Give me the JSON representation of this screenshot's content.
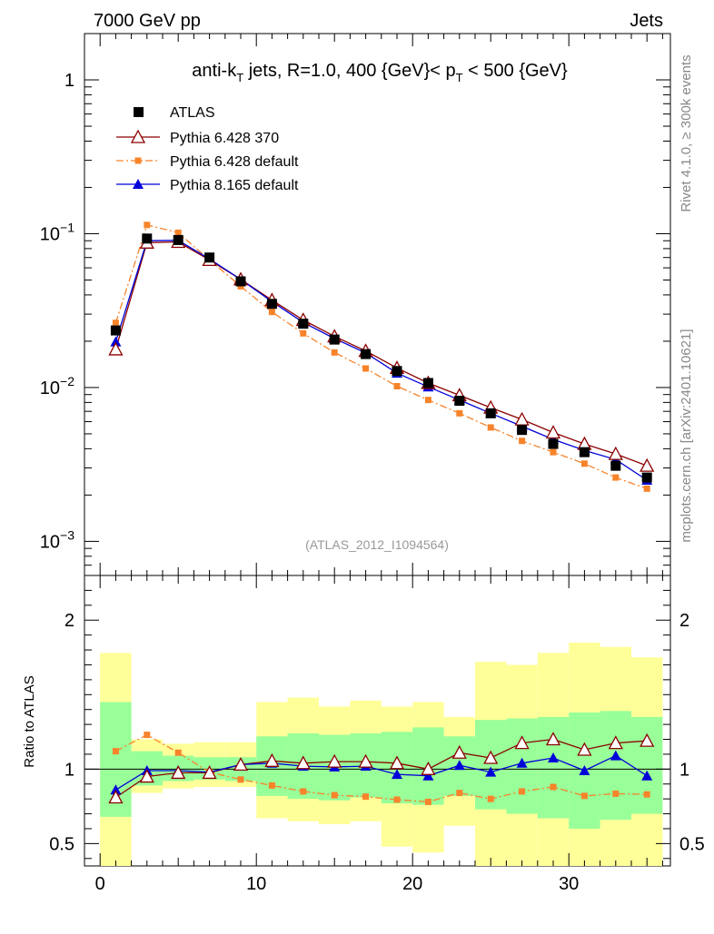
{
  "header": {
    "left": "7000 GeV pp",
    "right": "Jets"
  },
  "side": {
    "top": "Rivet 4.1.0, ≥ 300k events",
    "bottom": "mcplots.cern.ch [arXiv:2401.10621]"
  },
  "colors": {
    "atlas": "#000000",
    "p6_370": "#8b0000",
    "p6_def": "#f7832a",
    "p8_def": "#0000d9",
    "band_inner": "#99ff99",
    "band_outer": "#ffff99"
  },
  "chart_data": [
    {
      "type": "line",
      "scale": "log",
      "title_parts": {
        "a": "anti-k",
        "a_sub": "T",
        "b": " jets, R=1.0, 400 {GeV}< p",
        "b_sub": "T",
        "c": " < 500 {GeV}"
      },
      "watermark": "(ATLAS_2012_I1094564)",
      "xlim": [
        -1,
        36.5
      ],
      "ylim": [
        0.0006,
        2.0
      ],
      "xticks": [
        0,
        10,
        20,
        30
      ],
      "xtick_labels": [
        "0",
        "10",
        "20",
        "30"
      ],
      "yticks": [
        0.001,
        0.01,
        0.1,
        1
      ],
      "ytick_labels": [
        {
          "base": "10",
          "exp": "−3"
        },
        {
          "base": "10",
          "exp": "−2"
        },
        {
          "base": "10",
          "exp": "−1"
        },
        {
          "base": "1",
          "exp": ""
        }
      ],
      "x": [
        1,
        3,
        5,
        7,
        9,
        11,
        13,
        15,
        17,
        19,
        21,
        23,
        25,
        27,
        29,
        31,
        33,
        35
      ],
      "series": [
        {
          "name": "ATLAS",
          "marker": "square",
          "values": [
            0.0235,
            0.093,
            0.091,
            0.07,
            0.049,
            0.035,
            0.026,
            0.0205,
            0.0165,
            0.0128,
            0.0107,
            0.0082,
            0.0068,
            0.0053,
            0.0043,
            0.0038,
            0.0031,
            0.0026
          ]
        },
        {
          "name": "Pythia 6.428 370",
          "marker": "triangle-open",
          "values": [
            0.0177,
            0.0875,
            0.0885,
            0.0675,
            0.0505,
            0.037,
            0.0275,
            0.0215,
            0.0173,
            0.0134,
            0.0107,
            0.0089,
            0.0074,
            0.0062,
            0.0051,
            0.0043,
            0.0037,
            0.0031
          ]
        },
        {
          "name": "Pythia 6.428 default",
          "marker": "square-small",
          "values": [
            0.0263,
            0.114,
            0.1015,
            0.0675,
            0.0455,
            0.031,
            0.0225,
            0.0169,
            0.0133,
            0.0102,
            0.0083,
            0.0068,
            0.0055,
            0.0045,
            0.0038,
            0.0032,
            0.0026,
            0.0022
          ]
        },
        {
          "name": "Pythia 8.165 default",
          "marker": "triangle-filled",
          "values": [
            0.0198,
            0.09,
            0.0905,
            0.0685,
            0.0505,
            0.0362,
            0.0265,
            0.0208,
            0.0168,
            0.0124,
            0.0101,
            0.0083,
            0.0068,
            0.0056,
            0.0046,
            0.0039,
            0.0034,
            0.0025
          ]
        }
      ]
    },
    {
      "type": "line",
      "ylabel": "Ratio to ATLAS",
      "xlim": [
        -1,
        36.5
      ],
      "ylim": [
        0.35,
        2.3
      ],
      "yticks": [
        0.5,
        1,
        2
      ],
      "ytick_labels": [
        "0.5",
        "1",
        "2"
      ],
      "xticks": [
        0,
        10,
        20,
        30
      ],
      "xtick_labels": [
        "0",
        "10",
        "20",
        "30"
      ],
      "bins": [
        [
          0,
          2
        ],
        [
          2,
          4
        ],
        [
          4,
          6
        ],
        [
          6,
          8
        ],
        [
          8,
          10
        ],
        [
          10,
          12
        ],
        [
          12,
          14
        ],
        [
          14,
          16
        ],
        [
          16,
          18
        ],
        [
          18,
          20
        ],
        [
          20,
          22
        ],
        [
          22,
          24
        ],
        [
          24,
          26
        ],
        [
          26,
          28
        ],
        [
          28,
          30
        ],
        [
          30,
          32
        ],
        [
          32,
          34
        ],
        [
          34,
          36
        ]
      ],
      "band_outer": [
        [
          0.35,
          1.78
        ],
        [
          0.84,
          1.2
        ],
        [
          0.87,
          1.17
        ],
        [
          0.88,
          1.18
        ],
        [
          0.88,
          1.18
        ],
        [
          0.67,
          1.45
        ],
        [
          0.65,
          1.48
        ],
        [
          0.63,
          1.42
        ],
        [
          0.65,
          1.46
        ],
        [
          0.48,
          1.42
        ],
        [
          0.44,
          1.45
        ],
        [
          0.62,
          1.35
        ],
        [
          0.35,
          1.72
        ],
        [
          0.35,
          1.7
        ],
        [
          0.35,
          1.78
        ],
        [
          0.35,
          1.85
        ],
        [
          0.35,
          1.82
        ],
        [
          0.35,
          1.75
        ]
      ],
      "band_inner": [
        [
          0.68,
          1.45
        ],
        [
          0.89,
          1.12
        ],
        [
          0.92,
          1.09
        ],
        [
          0.93,
          1.08
        ],
        [
          0.92,
          1.08
        ],
        [
          0.82,
          1.22
        ],
        [
          0.8,
          1.24
        ],
        [
          0.79,
          1.23
        ],
        [
          0.81,
          1.24
        ],
        [
          0.77,
          1.25
        ],
        [
          0.76,
          1.28
        ],
        [
          0.82,
          1.22
        ],
        [
          0.73,
          1.33
        ],
        [
          0.7,
          1.34
        ],
        [
          0.67,
          1.35
        ],
        [
          0.6,
          1.38
        ],
        [
          0.66,
          1.39
        ],
        [
          0.7,
          1.35
        ]
      ],
      "reference": 1,
      "series": [
        {
          "name": "Pythia 6.428 370",
          "values": [
            0.81,
            0.95,
            0.975,
            0.975,
            1.03,
            1.055,
            1.04,
            1.05,
            1.05,
            1.04,
            1.0,
            1.11,
            1.075,
            1.175,
            1.2,
            1.13,
            1.175,
            1.19
          ]
        },
        {
          "name": "Pythia 6.428 default",
          "values": [
            1.12,
            1.23,
            1.11,
            0.98,
            0.93,
            0.89,
            0.85,
            0.825,
            0.815,
            0.795,
            0.78,
            0.84,
            0.8,
            0.85,
            0.88,
            0.82,
            0.835,
            0.83
          ]
        },
        {
          "name": "Pythia 8.165 default",
          "values": [
            0.86,
            0.99,
            0.99,
            0.98,
            1.03,
            1.04,
            1.02,
            1.015,
            1.02,
            0.965,
            0.955,
            1.025,
            0.98,
            1.04,
            1.075,
            0.99,
            1.09,
            0.955
          ]
        }
      ]
    }
  ]
}
